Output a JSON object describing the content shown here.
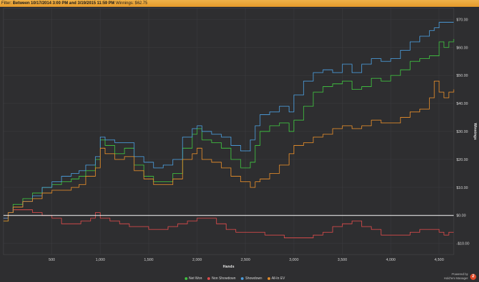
{
  "filter": {
    "label": "Filter:",
    "range": "Between 10/17/2014 3:00 PM and 3/19/2015 11:59 PM",
    "winnings": "Winnings: $62.75"
  },
  "brand": {
    "line1": "Powered by",
    "line2": "Hold'em Manager",
    "logo": "2"
  },
  "colors": {
    "background": "#2e2e30",
    "grid": "#3d3d40",
    "zero_line": "#ffffff",
    "net_won": "#3fbf3f",
    "non_showdown": "#d84a4a",
    "showdown": "#4a9ad8",
    "all_in_ev": "#e08a2a"
  },
  "chart_data": {
    "type": "line",
    "xlabel": "Hands",
    "ylabel": "Winnings",
    "xlim": [
      0,
      4650
    ],
    "ylim": [
      -14,
      74
    ],
    "x_ticks": [
      500,
      1000,
      1500,
      2000,
      2500,
      3000,
      3500,
      4000,
      4500
    ],
    "x_tick_labels": [
      "500",
      "1,000",
      "1,500",
      "2,000",
      "2,500",
      "3,000",
      "3,500",
      "4,000",
      "4,500"
    ],
    "y_ticks": [
      -10,
      0,
      10,
      20,
      30,
      40,
      50,
      60,
      70
    ],
    "y_tick_labels": [
      "-$10.00",
      "$0.00",
      "$10.00",
      "$20.00",
      "$30.00",
      "$40.00",
      "$50.00",
      "$60.00",
      "$70.00"
    ],
    "grid": true,
    "legend_position": "bottom",
    "series": [
      {
        "name": "Net Won",
        "color_key": "net_won",
        "x": [
          0,
          50,
          100,
          200,
          300,
          400,
          500,
          600,
          700,
          780,
          850,
          950,
          1000,
          1050,
          1150,
          1250,
          1350,
          1450,
          1550,
          1650,
          1750,
          1850,
          1950,
          2000,
          2050,
          2150,
          2250,
          2350,
          2450,
          2550,
          2600,
          2650,
          2750,
          2850,
          2950,
          3000,
          3100,
          3200,
          3300,
          3400,
          3500,
          3600,
          3700,
          3800,
          3900,
          4000,
          4100,
          4200,
          4300,
          4400,
          4500,
          4550,
          4600,
          4650
        ],
        "y": [
          -2,
          1,
          4,
          6,
          8,
          10,
          11,
          12,
          13,
          14,
          16,
          20,
          27,
          25,
          22,
          24,
          18,
          14,
          12,
          12,
          15,
          24,
          29,
          31,
          27,
          26,
          24,
          20,
          17,
          19,
          25,
          30,
          32,
          33,
          30,
          34,
          39,
          44,
          46,
          47,
          48,
          45,
          46,
          49,
          48,
          50,
          52,
          55,
          56,
          57,
          62,
          60,
          62,
          63
        ]
      },
      {
        "name": "Non Showdown",
        "color_key": "non_showdown",
        "x": [
          0,
          50,
          100,
          200,
          300,
          400,
          500,
          600,
          700,
          800,
          900,
          950,
          1000,
          1100,
          1200,
          1300,
          1400,
          1500,
          1600,
          1700,
          1800,
          1900,
          2000,
          2100,
          2200,
          2300,
          2400,
          2500,
          2600,
          2700,
          2800,
          2900,
          3000,
          3100,
          3200,
          3300,
          3400,
          3500,
          3600,
          3700,
          3800,
          3900,
          4000,
          4100,
          4200,
          4300,
          4400,
          4500,
          4550,
          4600,
          4650
        ],
        "y": [
          -1,
          1,
          2,
          2,
          1,
          0,
          -1,
          -3,
          -3,
          -2,
          -1,
          1,
          -1,
          -2,
          -3,
          -4,
          -4,
          -5,
          -5,
          -4,
          -3,
          -2,
          -1,
          -1,
          -3,
          -5,
          -6,
          -6,
          -6,
          -7,
          -7,
          -8,
          -8,
          -8,
          -7,
          -6,
          -4,
          -3,
          -2,
          -4,
          -5,
          -7,
          -7,
          -7,
          -6,
          -5,
          -5,
          -6,
          -7,
          -6,
          -6
        ]
      },
      {
        "name": "Showdown",
        "color_key": "showdown",
        "x": [
          0,
          50,
          100,
          200,
          300,
          400,
          500,
          600,
          700,
          780,
          850,
          950,
          1000,
          1050,
          1150,
          1250,
          1350,
          1450,
          1550,
          1650,
          1750,
          1850,
          1950,
          2000,
          2050,
          2150,
          2250,
          2350,
          2450,
          2550,
          2600,
          2650,
          2750,
          2850,
          2950,
          3000,
          3100,
          3200,
          3300,
          3400,
          3500,
          3600,
          3700,
          3800,
          3900,
          4000,
          4100,
          4200,
          4300,
          4400,
          4450,
          4500,
          4600,
          4650
        ],
        "y": [
          -1,
          1,
          3,
          5,
          7,
          10,
          12,
          14,
          15,
          16,
          18,
          21,
          28,
          27,
          26,
          26,
          21,
          19,
          17,
          18,
          20,
          28,
          31,
          32,
          30,
          29,
          28,
          25,
          23,
          27,
          32,
          36,
          37,
          39,
          37,
          43,
          48,
          51,
          52,
          51,
          54,
          51,
          54,
          56,
          55,
          56,
          59,
          62,
          64,
          66,
          67,
          69,
          69,
          69
        ]
      },
      {
        "name": "All-In EV",
        "color_key": "all_in_ev",
        "x": [
          0,
          50,
          100,
          200,
          300,
          400,
          500,
          600,
          700,
          780,
          850,
          950,
          1000,
          1050,
          1150,
          1250,
          1350,
          1450,
          1550,
          1650,
          1750,
          1850,
          1950,
          2000,
          2050,
          2150,
          2250,
          2350,
          2450,
          2550,
          2600,
          2650,
          2750,
          2850,
          2950,
          3000,
          3100,
          3200,
          3300,
          3400,
          3500,
          3600,
          3700,
          3800,
          3900,
          4000,
          4100,
          4200,
          4300,
          4400,
          4450,
          4500,
          4550,
          4600,
          4650
        ],
        "y": [
          -2,
          1,
          3,
          5,
          6,
          8,
          9,
          9,
          10,
          11,
          14,
          17,
          24,
          22,
          20,
          21,
          16,
          13,
          11,
          11,
          13,
          20,
          22,
          24,
          20,
          19,
          17,
          14,
          12,
          10,
          12,
          13,
          15,
          18,
          22,
          25,
          26,
          28,
          29,
          31,
          32,
          31,
          32,
          34,
          33,
          33,
          35,
          37,
          38,
          42,
          48,
          44,
          42,
          44,
          45
        ]
      }
    ]
  }
}
